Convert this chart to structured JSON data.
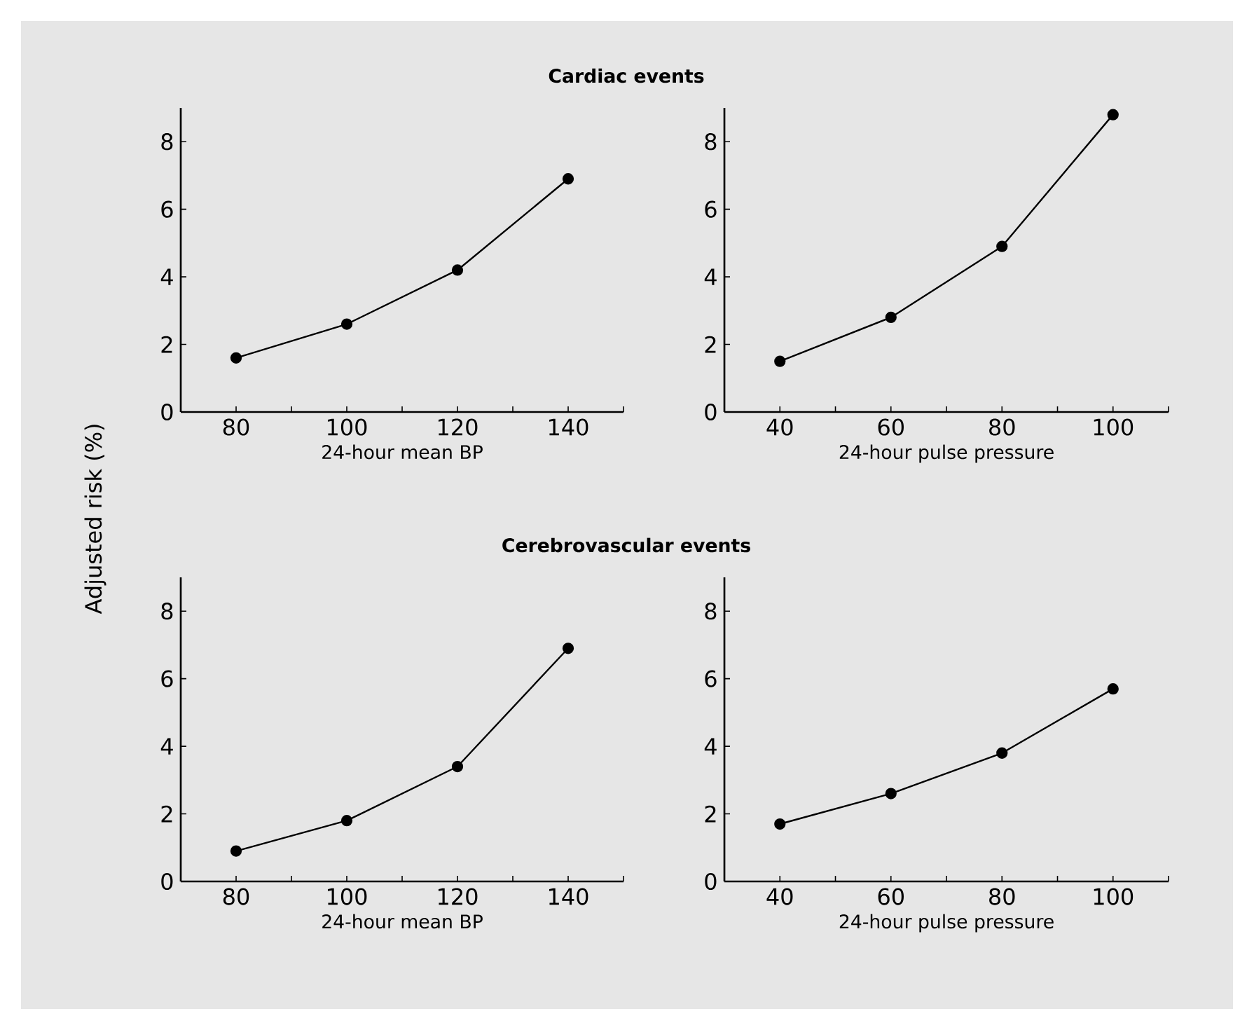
{
  "chart_data": [
    {
      "type": "line",
      "title": "Cardiac events",
      "ylabel": "Adjusted risk (%)",
      "xlabel": "24-hour mean BP",
      "x": [
        80,
        100,
        120,
        140
      ],
      "values": [
        1.6,
        2.6,
        4.2,
        6.9
      ],
      "color": "#000000",
      "marker": "circle",
      "xlim": [
        70,
        150
      ],
      "ylim": [
        0,
        9
      ],
      "xticks": [
        80,
        100,
        120,
        140,
        {
          "value": 90,
          "label": null
        },
        {
          "value": 110,
          "label": null
        },
        {
          "value": 130,
          "label": null
        },
        {
          "value": 150,
          "label": null
        }
      ],
      "yticks": [
        0,
        2,
        4,
        6,
        8
      ]
    },
    {
      "type": "line",
      "xlabel": "24-hour pulse pressure",
      "x": [
        40,
        60,
        80,
        100
      ],
      "values": [
        1.5,
        2.8,
        4.9,
        8.8
      ],
      "color": "#000000",
      "marker": "circle",
      "xlim": [
        30,
        110
      ],
      "ylim": [
        0,
        9
      ],
      "xticks": [
        40,
        60,
        80,
        100,
        {
          "value": 50,
          "label": null
        },
        {
          "value": 70,
          "label": null
        },
        {
          "value": 90,
          "label": null
        },
        {
          "value": 110,
          "label": null
        }
      ],
      "yticks": [
        0,
        2,
        4,
        6,
        8
      ]
    },
    {
      "type": "line",
      "title": "Cerebrovascular events",
      "xlabel": "24-hour mean BP",
      "x": [
        80,
        100,
        120,
        140
      ],
      "values": [
        0.9,
        1.8,
        3.4,
        6.9
      ],
      "color": "#000000",
      "marker": "circle",
      "xlim": [
        70,
        150
      ],
      "ylim": [
        0,
        9
      ],
      "xticks": [
        80,
        100,
        120,
        140,
        {
          "value": 90,
          "label": null
        },
        {
          "value": 110,
          "label": null
        },
        {
          "value": 130,
          "label": null
        },
        {
          "value": 150,
          "label": null
        }
      ],
      "yticks": [
        0,
        2,
        4,
        6,
        8
      ]
    },
    {
      "type": "line",
      "xlabel": "24-hour pulse pressure",
      "x": [
        40,
        60,
        80,
        100
      ],
      "values": [
        1.7,
        2.6,
        3.8,
        5.7
      ],
      "color": "#000000",
      "marker": "circle",
      "xlim": [
        30,
        110
      ],
      "ylim": [
        0,
        9
      ],
      "xticks": [
        40,
        60,
        80,
        100,
        {
          "value": 50,
          "label": null
        },
        {
          "value": 70,
          "label": null
        },
        {
          "value": 90,
          "label": null
        },
        {
          "value": 110,
          "label": null
        }
      ],
      "yticks": [
        0,
        2,
        4,
        6,
        8
      ]
    }
  ]
}
